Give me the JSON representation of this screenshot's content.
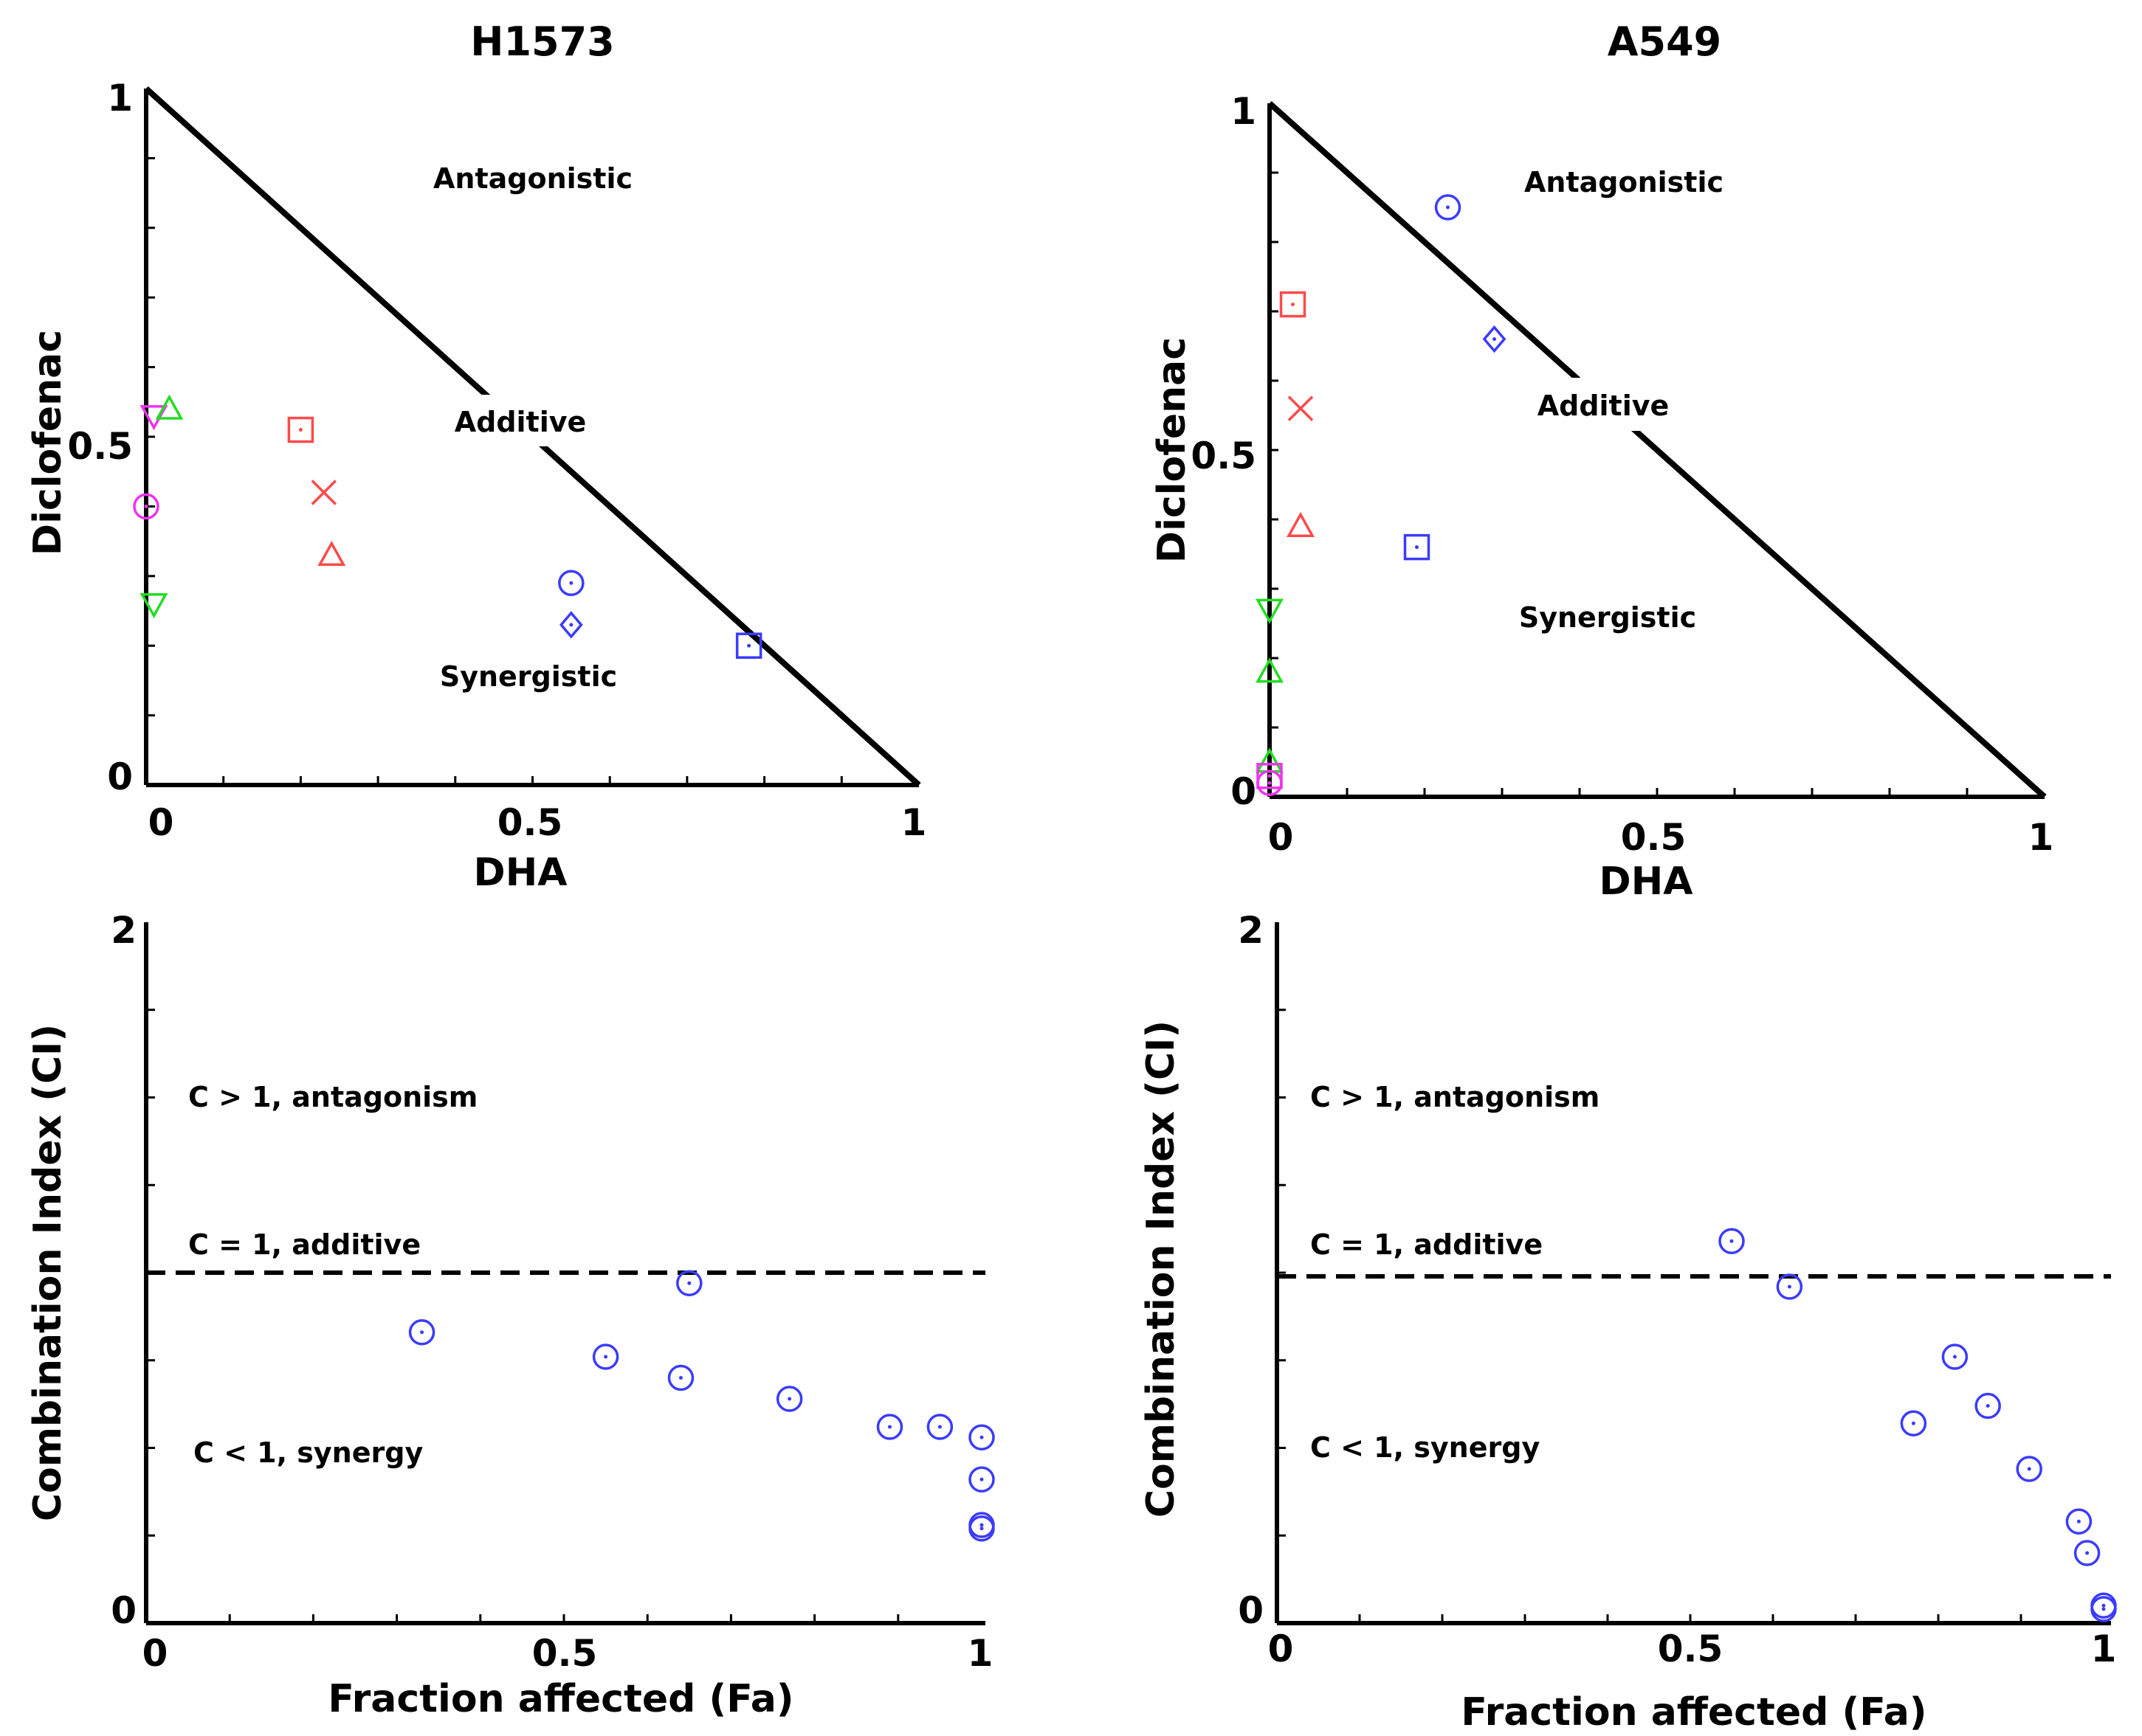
{
  "colors": {
    "blue": "#3b3bff",
    "red": "#ff4a4a",
    "green": "#22dd22",
    "magenta": "#ee33ee",
    "black": "#000000"
  },
  "chart_data": [
    {
      "type": "scatter",
      "subtype": "isobologram",
      "title": "H1573",
      "xlabel": "DHA",
      "ylabel": "Diclofenac",
      "xlim": [
        0,
        1
      ],
      "ylim": [
        0,
        1
      ],
      "xticks": [
        "0",
        "0.5",
        "1"
      ],
      "yticks": [
        "0",
        "0.5",
        "1"
      ],
      "annotations": [
        "Antagonistic",
        "Additive",
        "Synergistic"
      ],
      "line": {
        "from": [
          0,
          1
        ],
        "to": [
          1,
          0
        ]
      },
      "points": [
        {
          "x": 0.55,
          "y": 0.29,
          "marker": "circle",
          "color": "blue"
        },
        {
          "x": 0.55,
          "y": 0.23,
          "marker": "diamond",
          "color": "blue"
        },
        {
          "x": 0.78,
          "y": 0.2,
          "marker": "square",
          "color": "blue"
        },
        {
          "x": 0.2,
          "y": 0.51,
          "marker": "square",
          "color": "red"
        },
        {
          "x": 0.23,
          "y": 0.42,
          "marker": "x",
          "color": "red"
        },
        {
          "x": 0.24,
          "y": 0.33,
          "marker": "triangle-up",
          "color": "red"
        },
        {
          "x": 0.01,
          "y": 0.53,
          "marker": "triangle-down",
          "color": "magenta"
        },
        {
          "x": 0.0,
          "y": 0.4,
          "marker": "circle",
          "color": "magenta"
        },
        {
          "x": 0.03,
          "y": 0.54,
          "marker": "triangle-up",
          "color": "green"
        },
        {
          "x": 0.01,
          "y": 0.26,
          "marker": "triangle-down",
          "color": "green"
        }
      ]
    },
    {
      "type": "scatter",
      "subtype": "isobologram",
      "title": "A549",
      "xlabel": "DHA",
      "ylabel": "Diclofenac",
      "xlim": [
        0,
        1
      ],
      "ylim": [
        0,
        1
      ],
      "xticks": [
        "0",
        "0.5",
        "1"
      ],
      "yticks": [
        "0",
        "0.5",
        "1"
      ],
      "annotations": [
        "Antagonistic",
        "Additive",
        "Synergistic"
      ],
      "line": {
        "from": [
          0,
          1
        ],
        "to": [
          1,
          0
        ]
      },
      "points": [
        {
          "x": 0.23,
          "y": 0.85,
          "marker": "circle",
          "color": "blue"
        },
        {
          "x": 0.29,
          "y": 0.66,
          "marker": "diamond",
          "color": "blue"
        },
        {
          "x": 0.19,
          "y": 0.36,
          "marker": "square",
          "color": "blue"
        },
        {
          "x": 0.03,
          "y": 0.71,
          "marker": "square",
          "color": "red"
        },
        {
          "x": 0.04,
          "y": 0.56,
          "marker": "x",
          "color": "red"
        },
        {
          "x": 0.04,
          "y": 0.39,
          "marker": "triangle-up",
          "color": "red"
        },
        {
          "x": 0.0,
          "y": 0.27,
          "marker": "triangle-down",
          "color": "green"
        },
        {
          "x": 0.0,
          "y": 0.18,
          "marker": "triangle-up",
          "color": "green"
        },
        {
          "x": 0.0,
          "y": 0.05,
          "marker": "triangle-up",
          "color": "green"
        },
        {
          "x": 0.0,
          "y": 0.03,
          "marker": "square",
          "color": "magenta"
        },
        {
          "x": 0.0,
          "y": 0.02,
          "marker": "circle",
          "color": "magenta"
        }
      ]
    },
    {
      "type": "scatter",
      "title": "",
      "xlabel": "Fraction affected (Fa)",
      "ylabel": "Combination Index (CI)",
      "xlim": [
        0,
        1
      ],
      "ylim": [
        0,
        2
      ],
      "xticks": [
        "0",
        "0.5",
        "1"
      ],
      "yticks": [
        "0",
        "2"
      ],
      "annotations": [
        "C > 1, antagonism",
        "C = 1, additive",
        "C < 1, synergy"
      ],
      "reference_line": 1,
      "points": [
        {
          "x": 0.33,
          "y": 0.83
        },
        {
          "x": 0.55,
          "y": 0.76
        },
        {
          "x": 0.64,
          "y": 0.7
        },
        {
          "x": 0.65,
          "y": 0.97
        },
        {
          "x": 0.77,
          "y": 0.64
        },
        {
          "x": 0.89,
          "y": 0.56
        },
        {
          "x": 0.95,
          "y": 0.56
        },
        {
          "x": 1.0,
          "y": 0.53
        },
        {
          "x": 1.0,
          "y": 0.41
        },
        {
          "x": 1.0,
          "y": 0.28
        },
        {
          "x": 1.0,
          "y": 0.27
        }
      ]
    },
    {
      "type": "scatter",
      "title": "",
      "xlabel": "Fraction affected (Fa)",
      "ylabel": "Combination Index (CI)",
      "xlim": [
        0,
        1
      ],
      "ylim": [
        0,
        2
      ],
      "xticks": [
        "0",
        "0.5",
        "1"
      ],
      "yticks": [
        "0",
        "2"
      ],
      "annotations": [
        "C > 1, antagonism",
        "C = 1, additive",
        "C < 1, synergy"
      ],
      "reference_line": 1,
      "points": [
        {
          "x": 0.55,
          "y": 1.09
        },
        {
          "x": 0.62,
          "y": 0.96
        },
        {
          "x": 0.77,
          "y": 0.57
        },
        {
          "x": 0.82,
          "y": 0.76
        },
        {
          "x": 0.86,
          "y": 0.62
        },
        {
          "x": 0.91,
          "y": 0.44
        },
        {
          "x": 0.97,
          "y": 0.29
        },
        {
          "x": 0.98,
          "y": 0.2
        },
        {
          "x": 1.0,
          "y": 0.05
        },
        {
          "x": 1.0,
          "y": 0.04
        }
      ]
    }
  ]
}
